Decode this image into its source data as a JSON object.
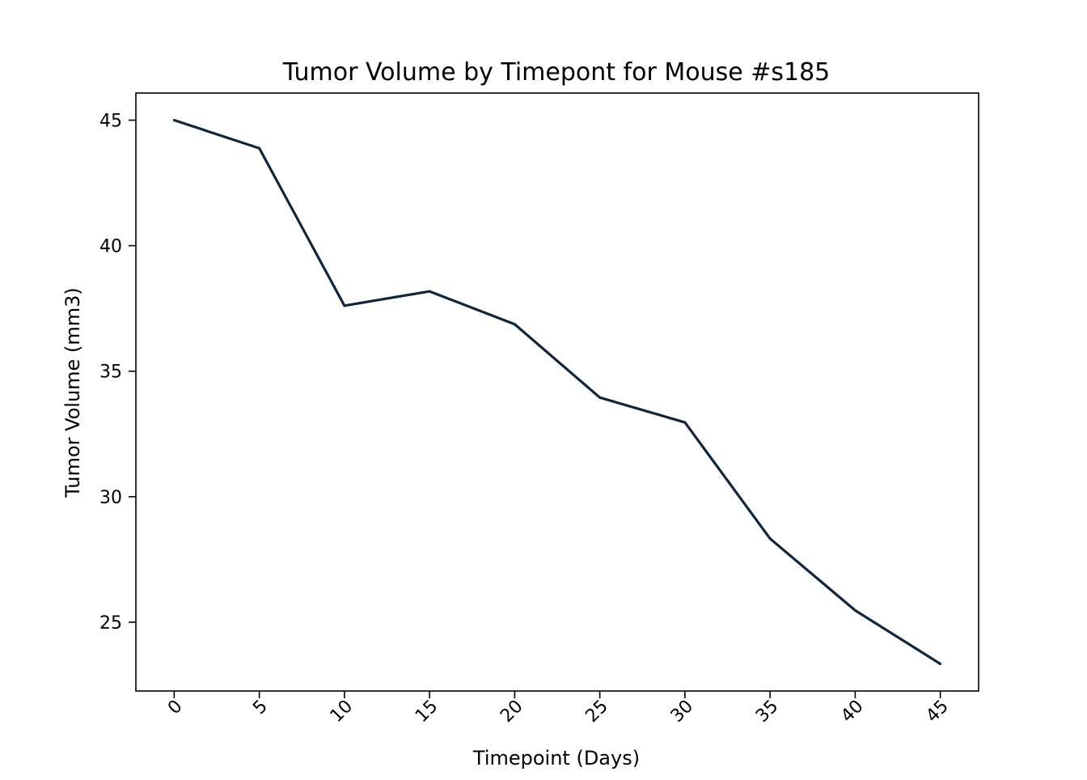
{
  "chart_data": {
    "type": "line",
    "title": "Tumor Volume by Timepont for Mouse #s185",
    "xlabel": "Timepoint (Days)",
    "ylabel": "Tumor Volume (mm3)",
    "x": [
      0,
      5,
      10,
      15,
      20,
      25,
      30,
      35,
      40,
      45
    ],
    "series": [
      {
        "values": [
          45.0,
          43.88,
          37.61,
          38.18,
          36.87,
          33.95,
          32.96,
          28.33,
          25.47,
          23.34
        ]
      }
    ],
    "x_ticks": [
      "0",
      "5",
      "10",
      "15",
      "20",
      "25",
      "30",
      "35",
      "40",
      "45"
    ],
    "x_tick_rotation": 45,
    "y_ticks": [
      "25",
      "30",
      "35",
      "40",
      "45"
    ],
    "xlim": [
      -2.25,
      47.25
    ],
    "ylim": [
      22.26,
      46.08
    ],
    "grid": false,
    "legend": "none",
    "line_color": "#12263a"
  }
}
